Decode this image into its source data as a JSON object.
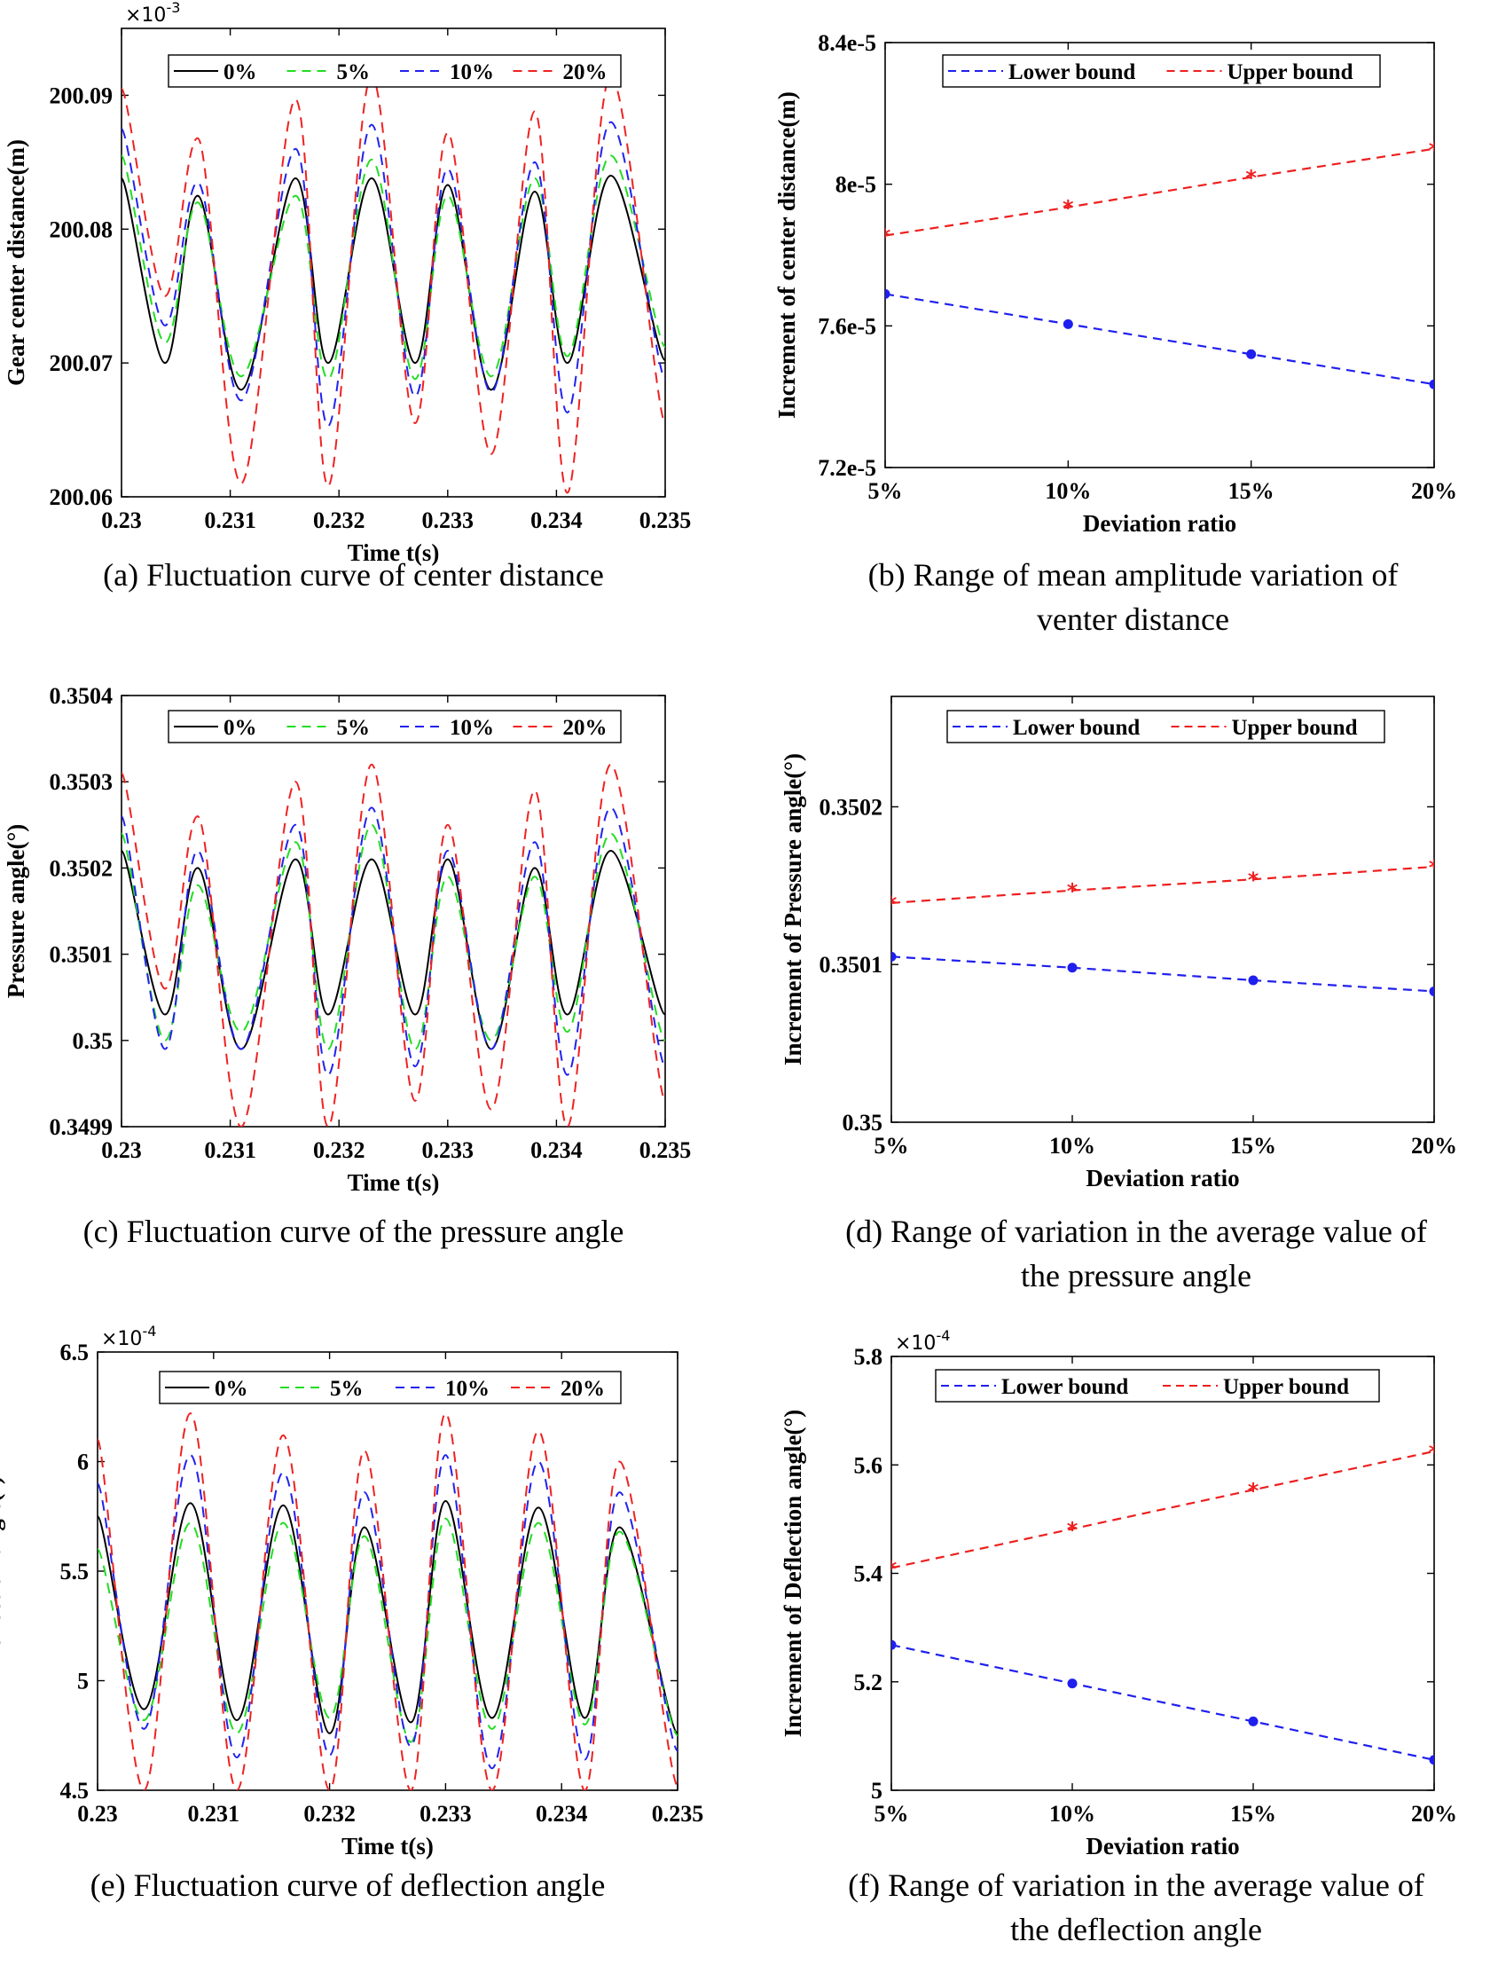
{
  "chart_data": [
    {
      "type": "line",
      "id": "a",
      "xlabel": "Time t(s)",
      "ylabel": "Gear center distance(m)",
      "xlim": [
        0.23,
        0.235
      ],
      "ylim": [
        200.06,
        200.095
      ],
      "xticks": [
        "0.23",
        "0.231",
        "0.232",
        "0.233",
        "0.234",
        "0.235"
      ],
      "yticks": [
        {
          "value": 200.06,
          "label": "200.06"
        },
        {
          "value": 200.07,
          "label": "200.07"
        },
        {
          "value": 200.08,
          "label": "200.08"
        },
        {
          "value": 200.09,
          "label": "200.09"
        }
      ],
      "exponent": "×10",
      "exponent_power": "-3",
      "legend": [
        "0%",
        "5%",
        "10%",
        "20%"
      ],
      "caption_lines": [
        "(a) Fluctuation curve of center distance"
      ],
      "series": [
        {
          "name": "0%",
          "color": "#000000",
          "style": "solid",
          "x": [
            0.23,
            0.2304,
            0.2307,
            0.2311,
            0.2316,
            0.2319,
            0.2323,
            0.2327,
            0.233,
            0.2334,
            0.2338,
            0.2341,
            0.2345,
            0.235
          ],
          "y": [
            200.0838,
            200.07,
            200.0825,
            200.068,
            200.0838,
            200.07,
            200.0838,
            200.07,
            200.0833,
            200.068,
            200.0828,
            200.07,
            200.084,
            200.0702
          ]
        },
        {
          "name": "5%",
          "color": "#22dd22",
          "style": "dash",
          "x": [
            0.23,
            0.2304,
            0.2307,
            0.2311,
            0.2316,
            0.2319,
            0.2323,
            0.2327,
            0.233,
            0.2334,
            0.2338,
            0.2341,
            0.2345,
            0.235
          ],
          "y": [
            200.0855,
            200.0715,
            200.082,
            200.069,
            200.0825,
            200.0688,
            200.0852,
            200.0688,
            200.0825,
            200.069,
            200.0838,
            200.0705,
            200.0855,
            200.0712
          ]
        },
        {
          "name": "10%",
          "color": "#2222ee",
          "style": "dash",
          "x": [
            0.23,
            0.2304,
            0.2307,
            0.2311,
            0.2316,
            0.2319,
            0.2323,
            0.2327,
            0.233,
            0.2334,
            0.2338,
            0.2341,
            0.2345,
            0.235
          ],
          "y": [
            200.0875,
            200.0728,
            200.0835,
            200.0672,
            200.086,
            200.0653,
            200.0878,
            200.0675,
            200.0845,
            200.0678,
            200.085,
            200.0663,
            200.088,
            200.0688
          ]
        },
        {
          "name": "20%",
          "color": "#ee2222",
          "style": "dash",
          "x": [
            0.23,
            0.2304,
            0.2307,
            0.2311,
            0.2316,
            0.2319,
            0.2323,
            0.2327,
            0.233,
            0.2334,
            0.2338,
            0.2341,
            0.2345,
            0.235
          ],
          "y": [
            200.0905,
            200.075,
            200.0868,
            200.061,
            200.0897,
            200.0608,
            200.0915,
            200.0655,
            200.0872,
            200.0632,
            200.0888,
            200.0603,
            200.0915,
            200.0655
          ]
        }
      ]
    },
    {
      "type": "line",
      "id": "b",
      "xlabel": "Deviation ratio",
      "ylabel": "Increment of center distance(m)",
      "categories": [
        "5%",
        "10%",
        "15%",
        "20%"
      ],
      "ylim": [
        7.2e-05,
        8.4e-05
      ],
      "yticks": [
        {
          "value": 7.2e-05,
          "label": "7.2e-5"
        },
        {
          "value": 7.6e-05,
          "label": "7.6e-5"
        },
        {
          "value": 8e-05,
          "label": "8e-5"
        },
        {
          "value": 8.4e-05,
          "label": "8.4e-5"
        }
      ],
      "legend": [
        "Lower bound",
        "Upper bound"
      ],
      "caption_lines": [
        "(b) Range of mean amplitude variation of",
        "venter distance"
      ],
      "series": [
        {
          "name": "Lower bound",
          "color": "#1f1fee",
          "values": [
            7.69e-05,
            7.605e-05,
            7.52e-05,
            7.435e-05
          ]
        },
        {
          "name": "Upper bound",
          "color": "#ee1f1f",
          "values": [
            7.855e-05,
            7.935e-05,
            8.02e-05,
            8.1e-05
          ]
        }
      ]
    },
    {
      "type": "line",
      "id": "c",
      "xlabel": "Time t(s)",
      "ylabel": "Pressure angle(°)",
      "xlim": [
        0.23,
        0.235
      ],
      "ylim": [
        0.3499,
        0.3504
      ],
      "xticks": [
        "0.23",
        "0.231",
        "0.232",
        "0.233",
        "0.234",
        "0.235"
      ],
      "yticks": [
        {
          "value": 0.3499,
          "label": "0.3499"
        },
        {
          "value": 0.35,
          "label": "0.35"
        },
        {
          "value": 0.3501,
          "label": "0.3501"
        },
        {
          "value": 0.3502,
          "label": "0.3502"
        },
        {
          "value": 0.3503,
          "label": "0.3503"
        },
        {
          "value": 0.3504,
          "label": "0.3504"
        }
      ],
      "legend": [
        "0%",
        "5%",
        "10%",
        "20%"
      ],
      "caption_lines": [
        "(c) Fluctuation curve of the pressure angle"
      ],
      "series": [
        {
          "name": "0%",
          "color": "#000000",
          "style": "solid",
          "x": [
            0.23,
            0.2304,
            0.2307,
            0.2311,
            0.2316,
            0.2319,
            0.2323,
            0.2327,
            0.233,
            0.2334,
            0.2338,
            0.2341,
            0.2345,
            0.235
          ],
          "y": [
            0.35022,
            0.35003,
            0.3502,
            0.34999,
            0.35021,
            0.35003,
            0.35021,
            0.35003,
            0.35021,
            0.34999,
            0.3502,
            0.35003,
            0.35022,
            0.35003
          ]
        },
        {
          "name": "5%",
          "color": "#22dd22",
          "style": "dash",
          "x": [
            0.23,
            0.2304,
            0.2307,
            0.2311,
            0.2316,
            0.2319,
            0.2323,
            0.2327,
            0.233,
            0.2334,
            0.2338,
            0.2341,
            0.2345,
            0.235
          ],
          "y": [
            0.35024,
            0.35,
            0.35018,
            0.35001,
            0.35023,
            0.34999,
            0.35025,
            0.34999,
            0.35019,
            0.35,
            0.35019,
            0.35001,
            0.35024,
            0.35
          ]
        },
        {
          "name": "10%",
          "color": "#2222ee",
          "style": "dash",
          "x": [
            0.23,
            0.2304,
            0.2307,
            0.2311,
            0.2316,
            0.2319,
            0.2323,
            0.2327,
            0.233,
            0.2334,
            0.2338,
            0.2341,
            0.2345,
            0.235
          ],
          "y": [
            0.35026,
            0.34999,
            0.35022,
            0.34999,
            0.35025,
            0.34996,
            0.35027,
            0.34997,
            0.35022,
            0.34999,
            0.35023,
            0.34996,
            0.35027,
            0.34997
          ]
        },
        {
          "name": "20%",
          "color": "#ee2222",
          "style": "dash",
          "x": [
            0.23,
            0.2304,
            0.2307,
            0.2311,
            0.2316,
            0.2319,
            0.2323,
            0.2327,
            0.233,
            0.2334,
            0.2338,
            0.2341,
            0.2345,
            0.235
          ],
          "y": [
            0.35031,
            0.35006,
            0.35026,
            0.3499,
            0.3503,
            0.3499,
            0.35032,
            0.34993,
            0.35025,
            0.34992,
            0.35029,
            0.3499,
            0.35032,
            0.34993
          ]
        }
      ]
    },
    {
      "type": "line",
      "id": "d",
      "xlabel": "Deviation ratio",
      "ylabel": "Increment of Pressure angle(°)",
      "categories": [
        "5%",
        "10%",
        "15%",
        "20%"
      ],
      "ylim": [
        0.35,
        0.35027
      ],
      "yticks": [
        {
          "value": 0.35,
          "label": "0.35"
        },
        {
          "value": 0.3501,
          "label": "0.3501"
        },
        {
          "value": 0.3502,
          "label": "0.3502"
        }
      ],
      "legend": [
        "Lower bound",
        "Upper bound"
      ],
      "caption_lines": [
        "(d) Range of variation in the average value of",
        "the pressure angle"
      ],
      "series": [
        {
          "name": "Lower bound",
          "color": "#1f1fee",
          "values": [
            0.350105,
            0.350098,
            0.35009,
            0.350083
          ]
        },
        {
          "name": "Upper bound",
          "color": "#ee1f1f",
          "values": [
            0.350139,
            0.350147,
            0.350154,
            0.350162
          ]
        }
      ]
    },
    {
      "type": "line",
      "id": "e",
      "xlabel": "Time t(s)",
      "ylabel": "Deflection angle(°)",
      "xlim": [
        0.23,
        0.235
      ],
      "ylim": [
        4.5,
        6.5
      ],
      "xticks": [
        "0.23",
        "0.231",
        "0.232",
        "0.233",
        "0.234",
        "0.235"
      ],
      "yticks": [
        {
          "value": 4.5,
          "label": "4.5"
        },
        {
          "value": 5.0,
          "label": "5"
        },
        {
          "value": 5.5,
          "label": "5.5"
        },
        {
          "value": 6.0,
          "label": "6"
        },
        {
          "value": 6.5,
          "label": "6.5"
        }
      ],
      "exponent": "×10",
      "exponent_power": "-4",
      "legend": [
        "0%",
        "5%",
        "10%",
        "20%"
      ],
      "caption_lines": [
        "(e) Fluctuation curve of deflection angle"
      ],
      "series": [
        {
          "name": "0%",
          "color": "#000000",
          "style": "solid",
          "x": [
            0.23,
            0.2304,
            0.2308,
            0.2312,
            0.2316,
            0.232,
            0.2323,
            0.2327,
            0.233,
            0.2334,
            0.2338,
            0.2342,
            0.2345,
            0.235
          ],
          "y": [
            5.75,
            4.87,
            5.81,
            4.82,
            5.8,
            4.76,
            5.7,
            4.81,
            5.82,
            4.83,
            5.79,
            4.83,
            5.7,
            4.76
          ]
        },
        {
          "name": "5%",
          "color": "#22dd22",
          "style": "dash",
          "x": [
            0.23,
            0.2304,
            0.2308,
            0.2312,
            0.2316,
            0.232,
            0.2323,
            0.2327,
            0.233,
            0.2334,
            0.2338,
            0.2342,
            0.2345,
            0.235
          ],
          "y": [
            5.6,
            4.82,
            5.72,
            4.76,
            5.72,
            4.83,
            5.66,
            4.72,
            5.74,
            4.78,
            5.72,
            4.8,
            5.68,
            4.75
          ]
        },
        {
          "name": "10%",
          "color": "#2222ee",
          "style": "dash",
          "x": [
            0.23,
            0.2304,
            0.2308,
            0.2312,
            0.2316,
            0.232,
            0.2323,
            0.2327,
            0.233,
            0.2334,
            0.2338,
            0.2342,
            0.2345,
            0.235
          ],
          "y": [
            5.9,
            4.78,
            6.03,
            4.65,
            5.95,
            4.66,
            5.86,
            4.7,
            6.03,
            4.6,
            6.0,
            4.64,
            5.86,
            4.68
          ]
        },
        {
          "name": "20%",
          "color": "#ee2222",
          "style": "dash",
          "x": [
            0.23,
            0.2304,
            0.2308,
            0.2312,
            0.2316,
            0.232,
            0.2323,
            0.2327,
            0.233,
            0.2334,
            0.2338,
            0.2342,
            0.2345,
            0.235
          ],
          "y": [
            6.1,
            4.5,
            6.22,
            4.5,
            6.12,
            4.5,
            6.05,
            4.5,
            6.22,
            4.5,
            6.14,
            4.5,
            6.0,
            4.52
          ]
        }
      ]
    },
    {
      "type": "line",
      "id": "f",
      "xlabel": "Deviation ratio",
      "ylabel": "Increment of Deflection angle(°)",
      "categories": [
        "5%",
        "10%",
        "15%",
        "20%"
      ],
      "ylim": [
        5.0,
        5.8
      ],
      "yticks": [
        {
          "value": 5.0,
          "label": "5"
        },
        {
          "value": 5.2,
          "label": "5.2"
        },
        {
          "value": 5.4,
          "label": "5.4"
        },
        {
          "value": 5.6,
          "label": "5.6"
        },
        {
          "value": 5.8,
          "label": "5.8"
        }
      ],
      "exponent": "×10",
      "exponent_power": "-4",
      "legend": [
        "Lower bound",
        "Upper bound"
      ],
      "caption_lines": [
        "(f) Range of variation in the average value of",
        "the deflection angle"
      ],
      "series": [
        {
          "name": "Lower bound",
          "color": "#1f1fee",
          "values": [
            5.268,
            5.197,
            5.127,
            5.056
          ]
        },
        {
          "name": "Upper bound",
          "color": "#ee1f1f",
          "values": [
            5.41,
            5.482,
            5.554,
            5.625
          ]
        }
      ]
    }
  ]
}
